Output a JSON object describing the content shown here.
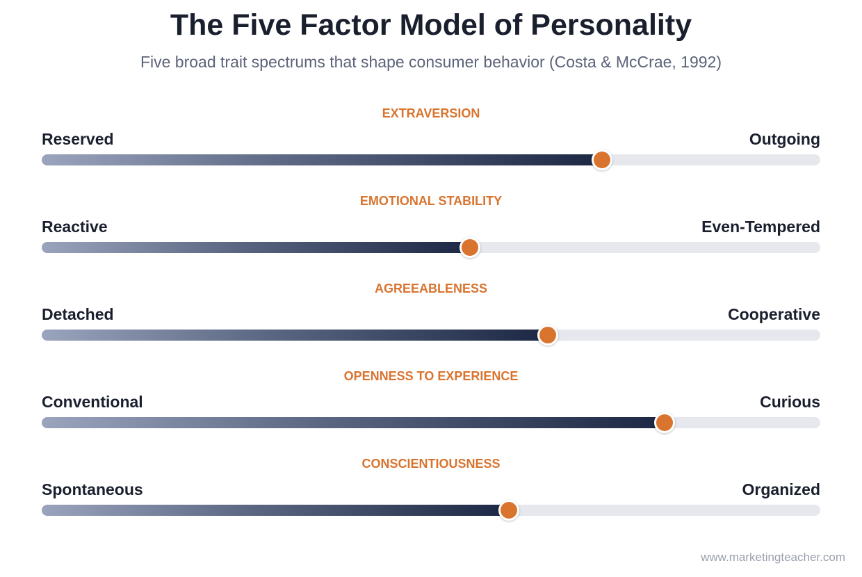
{
  "title": "The Five Factor Model of Personality",
  "subtitle": "Five broad trait spectrums that shape consumer behavior (Costa & McCrae, 1992)",
  "colors": {
    "accent": "#d9742f",
    "dark": "#1a1f2e",
    "track": "#e6e8ee",
    "fill_start": "#9ba4bd",
    "fill_end": "#1c2744"
  },
  "traits": [
    {
      "name": "EXTRAVERSION",
      "left_pole": "Reserved",
      "right_pole": "Outgoing",
      "level": 0.72
    },
    {
      "name": "EMOTIONAL STABILITY",
      "left_pole": "Reactive",
      "right_pole": "Even-Tempered",
      "level": 0.55
    },
    {
      "name": "AGREEABLENESS",
      "left_pole": "Detached",
      "right_pole": "Cooperative",
      "level": 0.65
    },
    {
      "name": "OPENNESS TO EXPERIENCE",
      "left_pole": "Conventional",
      "right_pole": "Curious",
      "level": 0.8
    },
    {
      "name": "CONSCIENTIOUSNESS",
      "left_pole": "Spontaneous",
      "right_pole": "Organized",
      "level": 0.6
    }
  ],
  "footer": "www.marketingteacher.com"
}
